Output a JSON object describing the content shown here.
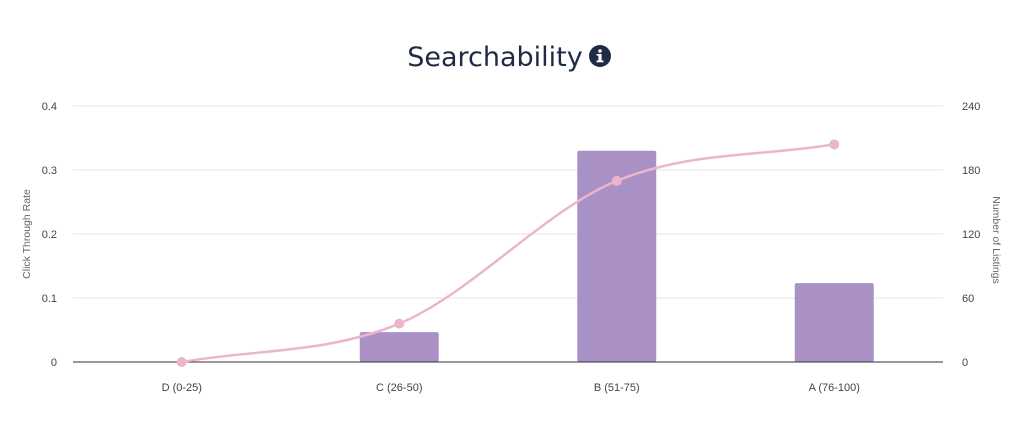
{
  "chart_data": {
    "type": "bar",
    "title": "Searchability",
    "title_icon": "info-circle-icon",
    "categories": [
      "D (0-25)",
      "C (26-50)",
      "B (51-75)",
      "A (76-100)"
    ],
    "series": [
      {
        "key": "listings",
        "kind": "bar",
        "axis": "right",
        "values": [
          0,
          28,
          198,
          74
        ],
        "color": "#a991c5"
      },
      {
        "key": "ctr",
        "kind": "line",
        "axis": "left",
        "smooth": true,
        "values": [
          0,
          0.06,
          0.283,
          0.34
        ],
        "color": "#ebb6cd"
      }
    ],
    "y_left": {
      "label": "Click Through Rate",
      "ylim": [
        0,
        0.4
      ],
      "ticks": [
        "0",
        "0.1",
        "0.2",
        "0.3",
        "0.4"
      ],
      "tick_values": [
        0,
        0.1,
        0.2,
        0.3,
        0.4
      ]
    },
    "y_right": {
      "label": "Number of Listings",
      "ylim": [
        0,
        240
      ],
      "ticks": [
        "0",
        "60",
        "120",
        "180",
        "240"
      ]
    },
    "grid": true,
    "legend": "none"
  }
}
